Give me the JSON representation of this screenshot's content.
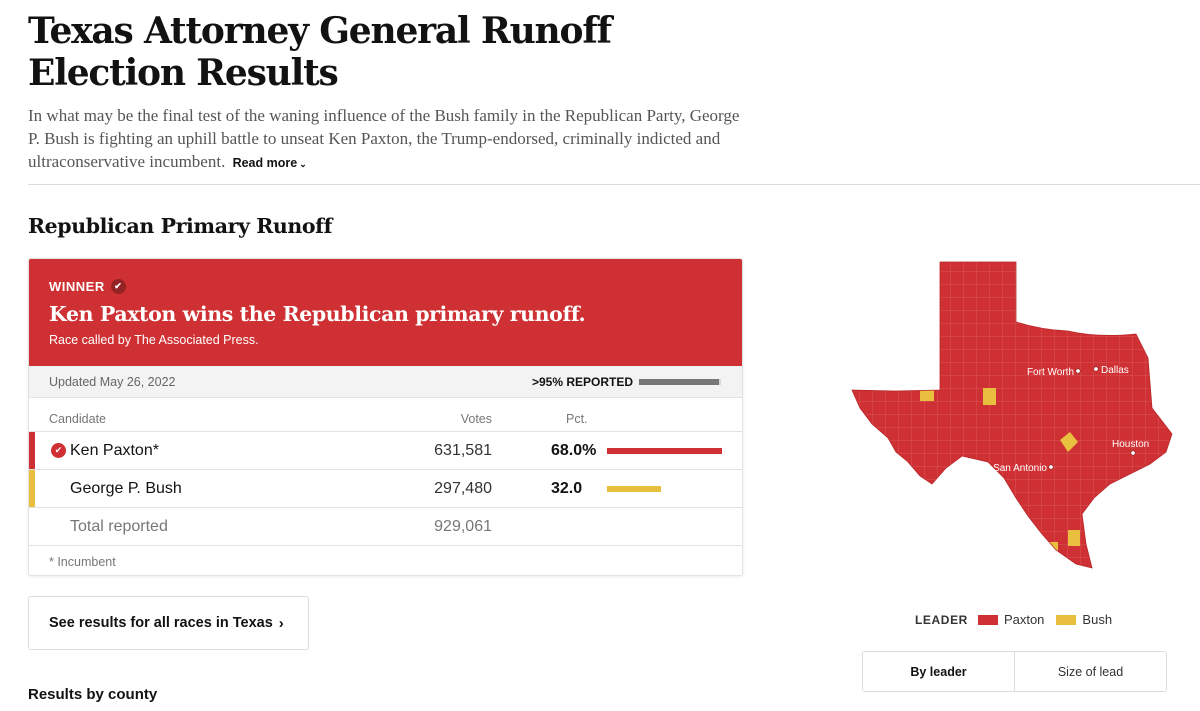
{
  "header": {
    "title": "Texas Attorney General Runoff Election Results",
    "summary": "In what may be the final test of the waning influence of the Bush family in the Republican Party, George P. Bush is fighting an uphill battle to unseat Ken Paxton, the Trump-endorsed, criminally indicted and ultraconservative incumbent.",
    "read_more": "Read more"
  },
  "race": {
    "section_title": "Republican Primary Runoff",
    "winner_label": "WINNER",
    "headline": "Ken Paxton wins the Republican primary runoff.",
    "called_by": "Race called by The Associated Press.",
    "updated": "Updated May 26, 2022",
    "reported_label": ">95% REPORTED",
    "reported_fraction": 0.97,
    "columns": {
      "candidate": "Candidate",
      "votes": "Votes",
      "pct": "Pct."
    },
    "candidates": [
      {
        "name": "Ken Paxton*",
        "votes": "631,581",
        "pct": "68.0%",
        "pct_value": 68.0,
        "color": "#cf3033",
        "winner": true
      },
      {
        "name": "George P. Bush",
        "votes": "297,480",
        "pct": "32.0",
        "pct_value": 32.0,
        "color": "#e8bf3e",
        "winner": false
      }
    ],
    "total": {
      "label": "Total reported",
      "votes": "929,061"
    },
    "footnote": "* Incumbent"
  },
  "links": {
    "all_races": "See results for all races in Texas"
  },
  "county_section": {
    "heading": "Results by county"
  },
  "map": {
    "cities": [
      "Fort Worth",
      "Dallas",
      "San Antonio",
      "Houston"
    ],
    "legend_title": "LEADER",
    "legend": [
      {
        "name": "Paxton",
        "color": "#cf3033"
      },
      {
        "name": "Bush",
        "color": "#e8bf3e"
      }
    ],
    "toggle": [
      "By leader",
      "Size of lead"
    ],
    "active_toggle": "By leader"
  },
  "icons": {
    "check": "check-icon",
    "chevron_down": "chevron-down-icon",
    "chevron_right": "chevron-right-icon"
  }
}
